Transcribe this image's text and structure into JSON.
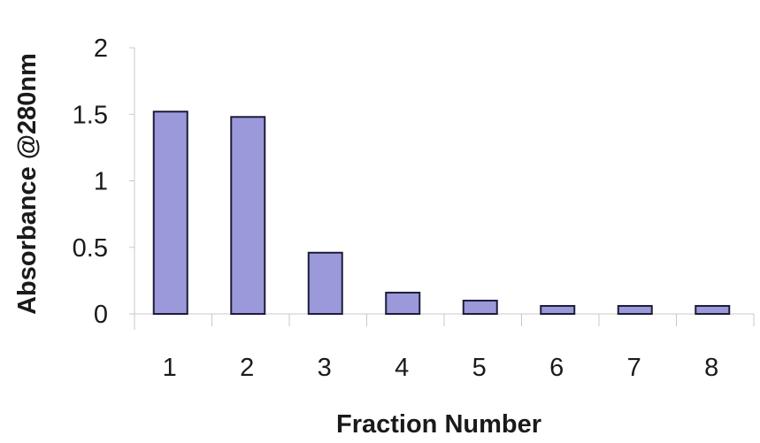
{
  "chart_data": {
    "type": "bar",
    "title": "",
    "xlabel": "Fraction Number",
    "ylabel": "Absorbance @280nm",
    "categories": [
      "1",
      "2",
      "3",
      "4",
      "5",
      "6",
      "7",
      "8"
    ],
    "values": [
      1.52,
      1.48,
      0.46,
      0.16,
      0.1,
      0.06,
      0.06,
      0.06
    ],
    "ylim": [
      0,
      2
    ],
    "yticks": [
      "0",
      "0.5",
      "1",
      "1.5",
      "2"
    ],
    "ytick_values": [
      0,
      0.5,
      1,
      1.5,
      2
    ],
    "grid": false,
    "legend": "none"
  },
  "colors": {
    "bar_fill": "#9b99d9",
    "bar_stroke": "#1c1c3a",
    "axis": "#c8c8c8",
    "text": "#1a1a1a"
  }
}
